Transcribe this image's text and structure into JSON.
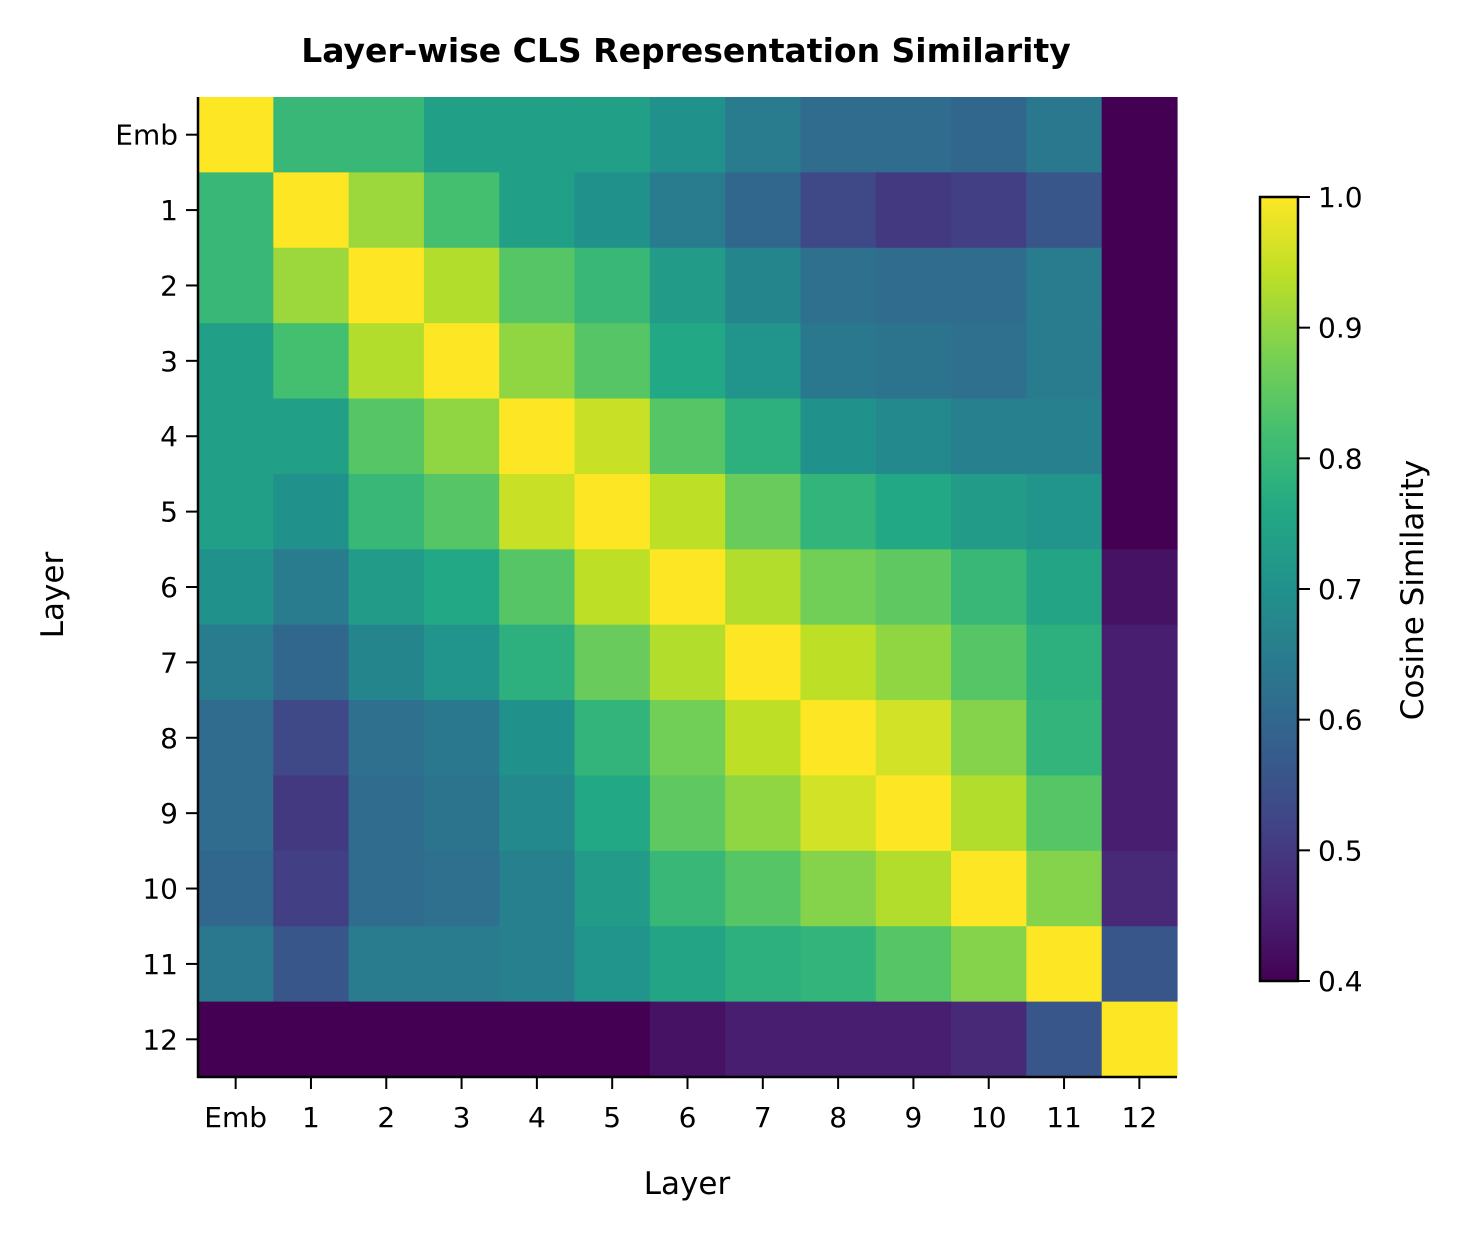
{
  "chart_data": {
    "type": "heatmap",
    "title": "Layer-wise CLS Representation Similarity",
    "xlabel": "Layer",
    "ylabel": "Layer",
    "x_categories": [
      "Emb",
      "1",
      "2",
      "3",
      "4",
      "5",
      "6",
      "7",
      "8",
      "9",
      "10",
      "11",
      "12"
    ],
    "y_categories": [
      "Emb",
      "1",
      "2",
      "3",
      "4",
      "5",
      "6",
      "7",
      "8",
      "9",
      "10",
      "11",
      "12"
    ],
    "colormap": "viridis",
    "colorbar": {
      "label": "Cosine Similarity",
      "range": [
        0.4,
        1.0
      ],
      "ticks": [
        "0.4",
        "0.5",
        "0.6",
        "0.7",
        "0.8",
        "0.9",
        "1.0"
      ]
    },
    "values": [
      [
        1.0,
        0.8,
        0.8,
        0.74,
        0.74,
        0.74,
        0.7,
        0.65,
        0.61,
        0.61,
        0.6,
        0.64,
        0.4
      ],
      [
        0.8,
        1.0,
        0.91,
        0.82,
        0.74,
        0.7,
        0.65,
        0.6,
        0.53,
        0.5,
        0.51,
        0.56,
        0.4
      ],
      [
        0.8,
        0.91,
        1.0,
        0.93,
        0.84,
        0.8,
        0.73,
        0.67,
        0.62,
        0.61,
        0.61,
        0.65,
        0.4
      ],
      [
        0.74,
        0.82,
        0.93,
        1.0,
        0.9,
        0.84,
        0.76,
        0.71,
        0.64,
        0.63,
        0.62,
        0.65,
        0.4
      ],
      [
        0.74,
        0.74,
        0.84,
        0.9,
        1.0,
        0.95,
        0.84,
        0.78,
        0.7,
        0.68,
        0.66,
        0.66,
        0.4
      ],
      [
        0.74,
        0.7,
        0.8,
        0.84,
        0.95,
        1.0,
        0.94,
        0.86,
        0.79,
        0.76,
        0.73,
        0.71,
        0.4
      ],
      [
        0.7,
        0.65,
        0.73,
        0.76,
        0.84,
        0.94,
        1.0,
        0.93,
        0.87,
        0.85,
        0.8,
        0.75,
        0.43
      ],
      [
        0.65,
        0.6,
        0.67,
        0.71,
        0.78,
        0.86,
        0.93,
        1.0,
        0.94,
        0.9,
        0.84,
        0.78,
        0.45
      ],
      [
        0.61,
        0.53,
        0.62,
        0.64,
        0.7,
        0.79,
        0.87,
        0.94,
        1.0,
        0.96,
        0.89,
        0.79,
        0.45
      ],
      [
        0.61,
        0.5,
        0.61,
        0.63,
        0.68,
        0.76,
        0.85,
        0.9,
        0.96,
        1.0,
        0.93,
        0.84,
        0.45
      ],
      [
        0.6,
        0.51,
        0.61,
        0.62,
        0.66,
        0.73,
        0.8,
        0.84,
        0.89,
        0.93,
        1.0,
        0.89,
        0.47
      ],
      [
        0.64,
        0.56,
        0.65,
        0.65,
        0.66,
        0.71,
        0.75,
        0.78,
        0.79,
        0.84,
        0.89,
        1.0,
        0.56
      ],
      [
        0.4,
        0.4,
        0.4,
        0.4,
        0.4,
        0.4,
        0.43,
        0.45,
        0.45,
        0.45,
        0.47,
        0.56,
        1.0
      ]
    ]
  }
}
